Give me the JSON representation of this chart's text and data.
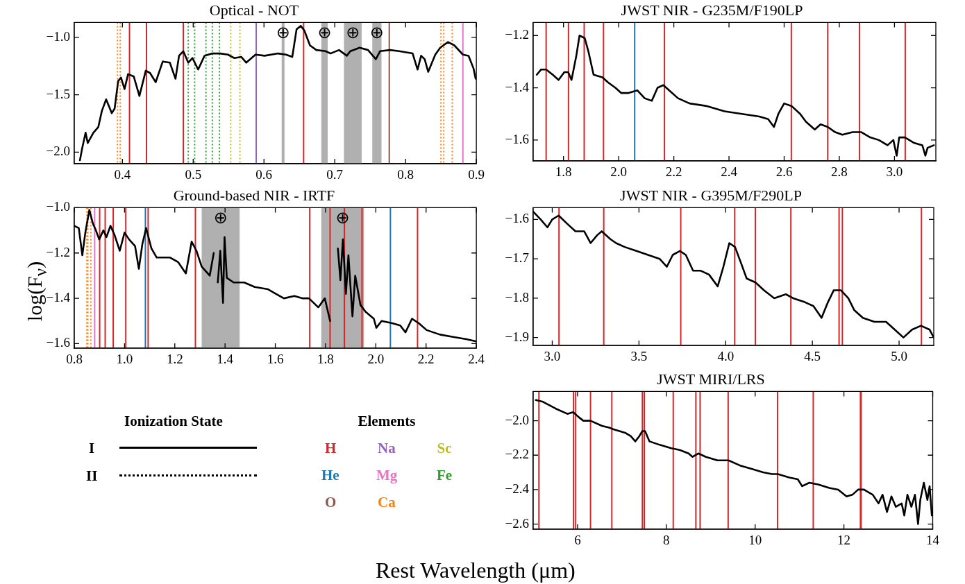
{
  "chart_data": [
    {
      "type": "line",
      "title": "Optical - NOT",
      "marker": "none",
      "legend": false,
      "xlim": [
        0.332,
        0.9
      ],
      "ylim": [
        -2.1,
        -0.87
      ],
      "xticks": [
        0.4,
        0.5,
        0.6,
        0.7,
        0.8,
        0.9
      ],
      "yticks": [
        {
          "value": -2.0,
          "label": "−2.0"
        },
        {
          "value": -1.5,
          "label": "−1.5"
        },
        {
          "value": -1.0,
          "label": "−1.0"
        }
      ],
      "series": [
        {
          "color": "#000000",
          "x": [
            0.34,
            0.343,
            0.348,
            0.351,
            0.359,
            0.366,
            0.371,
            0.377,
            0.385,
            0.389,
            0.394,
            0.398,
            0.403,
            0.408,
            0.416,
            0.424,
            0.433,
            0.439,
            0.447,
            0.457,
            0.467,
            0.475,
            0.48,
            0.486,
            0.493,
            0.499,
            0.507,
            0.516,
            0.527,
            0.538,
            0.549,
            0.558,
            0.568,
            0.575,
            0.588,
            0.601,
            0.62,
            0.631,
            0.64,
            0.646,
            0.652,
            0.657,
            0.665,
            0.674,
            0.687,
            0.694,
            0.706,
            0.717,
            0.722,
            0.735,
            0.747,
            0.758,
            0.764,
            0.778,
            0.791,
            0.81,
            0.817,
            0.822,
            0.827,
            0.832,
            0.842,
            0.849,
            0.86,
            0.869,
            0.881,
            0.889,
            0.896,
            0.899
          ],
          "values": [
            -2.07,
            -1.97,
            -1.83,
            -1.92,
            -1.83,
            -1.78,
            -1.64,
            -1.54,
            -1.66,
            -1.62,
            -1.38,
            -1.35,
            -1.45,
            -1.32,
            -1.34,
            -1.51,
            -1.29,
            -1.31,
            -1.39,
            -1.21,
            -1.22,
            -1.36,
            -1.16,
            -1.12,
            -1.22,
            -1.18,
            -1.28,
            -1.16,
            -1.14,
            -1.14,
            -1.15,
            -1.18,
            -1.17,
            -1.22,
            -1.15,
            -1.16,
            -1.14,
            -1.15,
            -1.17,
            -0.93,
            -0.9,
            -0.94,
            -1.07,
            -1.11,
            -1.12,
            -1.14,
            -1.11,
            -1.16,
            -1.12,
            -1.09,
            -1.11,
            -1.19,
            -1.12,
            -1.11,
            -1.12,
            -1.14,
            -1.28,
            -1.16,
            -1.19,
            -1.3,
            -1.15,
            -1.09,
            -1.04,
            -1.07,
            -1.15,
            -1.16,
            -1.27,
            -1.36
          ]
        }
      ],
      "bands": [
        {
          "axis": "x",
          "from": 0.625,
          "to": 0.629,
          "color": "#b0b0b0",
          "label": "⊕"
        },
        {
          "axis": "x",
          "from": 0.681,
          "to": 0.69,
          "color": "#b0b0b0",
          "label": "⊕"
        },
        {
          "axis": "x",
          "from": 0.713,
          "to": 0.738,
          "color": "#b0b0b0",
          "label": "⊕"
        },
        {
          "axis": "x",
          "from": 0.753,
          "to": 0.766,
          "color": "#b0b0b0",
          "label": "⊕"
        }
      ],
      "ref_lines": [
        {
          "axis": "x",
          "value": 0.393,
          "color": "#ff7f0e",
          "line_style": "dotted"
        },
        {
          "axis": "x",
          "value": 0.397,
          "color": "#ff7f0e",
          "line_style": "dotted"
        },
        {
          "axis": "x",
          "value": 0.41,
          "color": "#d62728"
        },
        {
          "axis": "x",
          "value": 0.434,
          "color": "#d62728"
        },
        {
          "axis": "x",
          "value": 0.486,
          "color": "#d62728"
        },
        {
          "axis": "x",
          "value": 0.493,
          "color": "#2ca02c",
          "line_style": "dotted"
        },
        {
          "axis": "x",
          "value": 0.502,
          "color": "#2ca02c",
          "line_style": "dotted"
        },
        {
          "axis": "x",
          "value": 0.518,
          "color": "#2ca02c",
          "line_style": "dotted"
        },
        {
          "axis": "x",
          "value": 0.527,
          "color": "#2ca02c",
          "line_style": "dotted"
        },
        {
          "axis": "x",
          "value": 0.537,
          "color": "#2ca02c",
          "line_style": "dotted"
        },
        {
          "axis": "x",
          "value": 0.553,
          "color": "#bcbd22",
          "line_style": "dotted"
        },
        {
          "axis": "x",
          "value": 0.566,
          "color": "#bcbd22",
          "line_style": "dotted"
        },
        {
          "axis": "x",
          "value": 0.589,
          "color": "#9467bd"
        },
        {
          "axis": "x",
          "value": 0.656,
          "color": "#d62728"
        },
        {
          "axis": "x",
          "value": 0.777,
          "color": "#8c564b"
        },
        {
          "axis": "x",
          "value": 0.85,
          "color": "#ff7f0e",
          "line_style": "dotted"
        },
        {
          "axis": "x",
          "value": 0.854,
          "color": "#ff7f0e",
          "line_style": "dotted"
        },
        {
          "axis": "x",
          "value": 0.866,
          "color": "#ff7f0e",
          "line_style": "dotted"
        },
        {
          "axis": "x",
          "value": 0.881,
          "color": "#e377c2"
        }
      ]
    },
    {
      "type": "line",
      "title": "JWST NIR - G235M/F190LP",
      "marker": "none",
      "legend": false,
      "xlim": [
        1.69,
        3.15
      ],
      "ylim": [
        -1.68,
        -1.15
      ],
      "xticks": [
        1.8,
        {
          "value": 2.0,
          "label": "2.0"
        },
        2.2,
        2.4,
        2.6,
        2.8,
        {
          "value": 3.0,
          "label": "3.0"
        }
      ],
      "yticks": [
        {
          "value": -1.6,
          "label": "−1.6"
        },
        {
          "value": -1.4,
          "label": "−1.4"
        },
        {
          "value": -1.2,
          "label": "−1.2"
        }
      ],
      "series": [
        {
          "color": "#000000",
          "x": [
            1.703,
            1.719,
            1.737,
            1.761,
            1.782,
            1.803,
            1.817,
            1.829,
            1.846,
            1.858,
            1.877,
            1.89,
            1.909,
            1.941,
            1.962,
            1.988,
            2.009,
            2.036,
            2.068,
            2.094,
            2.12,
            2.141,
            2.162,
            2.183,
            2.215,
            2.257,
            2.32,
            2.384,
            2.447,
            2.51,
            2.542,
            2.563,
            2.579,
            2.6,
            2.627,
            2.658,
            2.679,
            2.711,
            2.732,
            2.758,
            2.785,
            2.811,
            2.848,
            2.88,
            2.912,
            2.943,
            2.975,
            2.996,
            3.008,
            3.017,
            3.038,
            3.069,
            3.101,
            3.112,
            3.12,
            3.143
          ],
          "values": [
            -1.35,
            -1.33,
            -1.33,
            -1.35,
            -1.37,
            -1.34,
            -1.34,
            -1.37,
            -1.28,
            -1.2,
            -1.21,
            -1.26,
            -1.35,
            -1.36,
            -1.38,
            -1.4,
            -1.42,
            -1.42,
            -1.41,
            -1.44,
            -1.45,
            -1.4,
            -1.39,
            -1.41,
            -1.44,
            -1.46,
            -1.47,
            -1.49,
            -1.5,
            -1.51,
            -1.52,
            -1.55,
            -1.5,
            -1.46,
            -1.47,
            -1.5,
            -1.53,
            -1.56,
            -1.54,
            -1.55,
            -1.57,
            -1.58,
            -1.57,
            -1.57,
            -1.59,
            -1.6,
            -1.62,
            -1.6,
            -1.66,
            -1.59,
            -1.59,
            -1.61,
            -1.62,
            -1.66,
            -1.63,
            -1.62
          ]
        }
      ],
      "ref_lines": [
        {
          "axis": "x",
          "value": 1.737,
          "color": "#d62728"
        },
        {
          "axis": "x",
          "value": 1.818,
          "color": "#d62728"
        },
        {
          "axis": "x",
          "value": 1.875,
          "color": "#d62728"
        },
        {
          "axis": "x",
          "value": 1.945,
          "color": "#d62728"
        },
        {
          "axis": "x",
          "value": 2.058,
          "color": "#1f77b4"
        },
        {
          "axis": "x",
          "value": 2.166,
          "color": "#d62728"
        },
        {
          "axis": "x",
          "value": 2.626,
          "color": "#d62728"
        },
        {
          "axis": "x",
          "value": 2.758,
          "color": "#d62728"
        },
        {
          "axis": "x",
          "value": 2.873,
          "color": "#d62728"
        },
        {
          "axis": "x",
          "value": 3.039,
          "color": "#d62728"
        }
      ]
    },
    {
      "type": "line",
      "title": "Ground-based NIR - IRTF",
      "ylabel": "log(F$_{ν}$)",
      "marker": "none",
      "legend": false,
      "xlim": [
        0.8,
        2.4
      ],
      "ylim": [
        -1.62,
        -1.0
      ],
      "xticks": [
        0.8,
        {
          "value": 1.0,
          "label": "1.0"
        },
        1.2,
        1.4,
        1.6,
        1.8,
        {
          "value": 2.0,
          "label": "2.0"
        },
        2.2,
        2.4
      ],
      "yticks": [
        {
          "value": -1.6,
          "label": "−1.6"
        },
        {
          "value": -1.4,
          "label": "−1.4"
        },
        {
          "value": -1.2,
          "label": "−1.2"
        },
        {
          "value": -1.0,
          "label": "−1.0"
        }
      ],
      "series": [
        {
          "color": "#000000",
          "x": [
            0.8,
            0.818,
            0.832,
            0.844,
            0.86,
            0.874,
            0.886,
            0.899,
            0.916,
            0.928,
            0.944,
            0.96,
            0.981,
            1.0,
            1.018,
            1.042,
            1.057,
            1.071,
            1.086,
            1.107,
            1.128,
            1.149,
            1.181,
            1.213,
            1.244,
            1.267,
            1.286,
            1.307,
            1.339,
            1.355,
            1.358,
            1.362,
            1.371,
            1.381,
            1.392,
            1.398,
            1.407,
            1.434,
            1.476,
            1.518,
            1.571,
            1.602,
            1.634,
            1.676,
            1.707,
            1.734,
            1.771,
            1.797,
            1.818,
            1.832,
            1.837,
            1.849,
            1.859,
            1.869,
            1.881,
            1.891,
            1.907,
            1.918,
            1.939,
            1.96,
            1.992,
            2.002,
            2.023,
            2.065,
            2.097,
            2.118,
            2.144,
            2.171,
            2.202,
            2.255,
            2.307,
            2.36,
            2.4
          ],
          "values": [
            -1.08,
            -1.09,
            -1.21,
            -1.11,
            -1.01,
            -1.07,
            -1.1,
            -1.14,
            -1.1,
            -1.13,
            -1.08,
            -1.12,
            -1.19,
            -1.11,
            -1.14,
            -1.17,
            -1.27,
            -1.16,
            -1.09,
            -1.18,
            -1.22,
            -1.22,
            -1.22,
            -1.24,
            -1.29,
            -1.15,
            -1.19,
            -1.26,
            -1.3,
            -1.2,
            null,
            null,
            -1.33,
            -1.19,
            -1.42,
            -1.13,
            -1.31,
            -1.33,
            -1.33,
            -1.35,
            -1.36,
            -1.38,
            -1.4,
            -1.39,
            -1.4,
            -1.4,
            -1.44,
            -1.4,
            -1.5,
            null,
            null,
            -1.18,
            -1.32,
            -1.14,
            -1.38,
            -1.21,
            -1.48,
            -1.3,
            -1.43,
            -1.46,
            -1.49,
            -1.53,
            -1.5,
            -1.51,
            -1.52,
            -1.55,
            -1.49,
            -1.51,
            -1.54,
            -1.56,
            -1.57,
            -1.58,
            -1.59
          ]
        }
      ],
      "bands": [
        {
          "axis": "x",
          "from": 1.307,
          "to": 1.458,
          "color": "#b0b0b0",
          "label": "⊕"
        },
        {
          "axis": "x",
          "from": 1.783,
          "to": 1.953,
          "color": "#b0b0b0",
          "label": "⊕"
        }
      ],
      "ref_lines": [
        {
          "axis": "x",
          "value": 0.85,
          "color": "#ff7f0e",
          "line_style": "dotted"
        },
        {
          "axis": "x",
          "value": 0.854,
          "color": "#ff7f0e",
          "line_style": "dotted"
        },
        {
          "axis": "x",
          "value": 0.866,
          "color": "#ff7f0e",
          "line_style": "dotted"
        },
        {
          "axis": "x",
          "value": 0.881,
          "color": "#e377c2"
        },
        {
          "axis": "x",
          "value": 0.901,
          "color": "#d62728"
        },
        {
          "axis": "x",
          "value": 0.923,
          "color": "#d62728"
        },
        {
          "axis": "x",
          "value": 0.955,
          "color": "#d62728"
        },
        {
          "axis": "x",
          "value": 1.005,
          "color": "#d62728"
        },
        {
          "axis": "x",
          "value": 1.083,
          "color": "#1f77b4"
        },
        {
          "axis": "x",
          "value": 1.094,
          "color": "#d62728"
        },
        {
          "axis": "x",
          "value": 1.282,
          "color": "#d62728"
        },
        {
          "axis": "x",
          "value": 1.737,
          "color": "#d62728"
        },
        {
          "axis": "x",
          "value": 1.818,
          "color": "#d62728"
        },
        {
          "axis": "x",
          "value": 1.875,
          "color": "#d62728"
        },
        {
          "axis": "x",
          "value": 1.945,
          "color": "#d62728"
        },
        {
          "axis": "x",
          "value": 2.058,
          "color": "#1f77b4"
        },
        {
          "axis": "x",
          "value": 2.166,
          "color": "#d62728"
        }
      ]
    },
    {
      "type": "line",
      "title": "JWST NIR - G395M/F290LP",
      "marker": "none",
      "legend": false,
      "xlim": [
        2.89,
        5.2
      ],
      "ylim": [
        -1.92,
        -1.57
      ],
      "xticks": [
        {
          "value": 3.0,
          "label": "3.0"
        },
        3.5,
        {
          "value": 4.0,
          "label": "4.0"
        },
        4.5,
        {
          "value": 5.0,
          "label": "5.0"
        }
      ],
      "yticks": [
        {
          "value": -1.9,
          "label": "−1.9"
        },
        {
          "value": -1.8,
          "label": "−1.8"
        },
        {
          "value": -1.7,
          "label": "−1.7"
        },
        {
          "value": -1.6,
          "label": "−1.6"
        }
      ],
      "series": [
        {
          "color": "#000000",
          "x": [
            2.89,
            2.933,
            2.972,
            3.0,
            3.037,
            3.084,
            3.134,
            3.184,
            3.221,
            3.259,
            3.285,
            3.335,
            3.368,
            3.418,
            3.485,
            3.552,
            3.619,
            3.661,
            3.695,
            3.736,
            3.77,
            3.812,
            3.854,
            3.904,
            3.954,
            3.987,
            4.021,
            4.054,
            4.088,
            4.121,
            4.172,
            4.221,
            4.28,
            4.347,
            4.389,
            4.456,
            4.506,
            4.553,
            4.59,
            4.623,
            4.665,
            4.707,
            4.741,
            4.791,
            4.858,
            4.925,
            4.975,
            5.025,
            5.075,
            5.126,
            5.176,
            5.2
          ],
          "values": [
            -1.58,
            -1.6,
            -1.62,
            -1.6,
            -1.59,
            -1.61,
            -1.63,
            -1.63,
            -1.66,
            -1.64,
            -1.63,
            -1.65,
            -1.66,
            -1.67,
            -1.68,
            -1.69,
            -1.7,
            -1.72,
            -1.69,
            -1.68,
            -1.69,
            -1.73,
            -1.73,
            -1.74,
            -1.77,
            -1.72,
            -1.66,
            -1.67,
            -1.71,
            -1.75,
            -1.76,
            -1.78,
            -1.8,
            -1.79,
            -1.8,
            -1.81,
            -1.82,
            -1.85,
            -1.81,
            -1.78,
            -1.78,
            -1.8,
            -1.83,
            -1.85,
            -1.86,
            -1.86,
            -1.88,
            -1.9,
            -1.88,
            -1.87,
            -1.88,
            -1.9
          ]
        }
      ],
      "ref_lines": [
        {
          "axis": "x",
          "value": 3.039,
          "color": "#d62728"
        },
        {
          "axis": "x",
          "value": 3.297,
          "color": "#d62728"
        },
        {
          "axis": "x",
          "value": 3.741,
          "color": "#d62728"
        },
        {
          "axis": "x",
          "value": 4.052,
          "color": "#d62728"
        },
        {
          "axis": "x",
          "value": 4.171,
          "color": "#d62728"
        },
        {
          "axis": "x",
          "value": 4.376,
          "color": "#d62728"
        },
        {
          "axis": "x",
          "value": 4.654,
          "color": "#d62728"
        },
        {
          "axis": "x",
          "value": 4.673,
          "color": "#d62728"
        },
        {
          "axis": "x",
          "value": 5.129,
          "color": "#d62728"
        }
      ]
    },
    {
      "type": "other",
      "legend_title": "Ionization State",
      "annotations": [
        "I",
        "II"
      ],
      "title": "Elements",
      "categories": [
        "H",
        "Na",
        "Sc",
        "He",
        "Mg",
        "Fe",
        "O",
        "Ca"
      ],
      "colors": [
        "#d62728",
        "#9467bd",
        "#bcbd22",
        "#1f77b4",
        "#e377c2",
        "#2ca02c",
        "#8c564b",
        "#ff7f0e"
      ]
    },
    {
      "type": "line",
      "title": "JWST MIRI/LRS",
      "xlabel": "Rest Wavelength (μm)",
      "marker": "none",
      "legend": false,
      "xlim": [
        5.0,
        14.0
      ],
      "ylim": [
        -2.63,
        -1.83
      ],
      "xticks": [
        6,
        8,
        10,
        12,
        14
      ],
      "yticks": [
        {
          "value": -2.6,
          "label": "−2.6"
        },
        {
          "value": -2.4,
          "label": "−2.4"
        },
        {
          "value": -2.2,
          "label": "−2.2"
        },
        {
          "value": -2.0,
          "label": "−2.0"
        }
      ],
      "series": [
        {
          "color": "#000000",
          "x": [
            5.06,
            5.22,
            5.51,
            5.77,
            5.9,
            6.03,
            6.13,
            6.29,
            6.55,
            6.71,
            6.81,
            7.07,
            7.2,
            7.3,
            7.39,
            7.46,
            7.52,
            7.62,
            7.85,
            8.11,
            8.3,
            8.5,
            8.59,
            8.72,
            8.89,
            9.15,
            9.4,
            9.66,
            9.92,
            10.18,
            10.38,
            10.51,
            10.77,
            10.96,
            11.06,
            11.22,
            11.42,
            11.67,
            11.87,
            12.06,
            12.19,
            12.32,
            12.45,
            12.65,
            12.78,
            12.87,
            12.97,
            13.07,
            13.17,
            13.3,
            13.36,
            13.43,
            13.52,
            13.6,
            13.67,
            13.72,
            13.8,
            13.88,
            13.93,
            13.98
          ],
          "values": [
            -1.88,
            -1.89,
            -1.93,
            -1.96,
            -1.95,
            -1.98,
            -2.0,
            -2.0,
            -2.03,
            -2.04,
            -2.05,
            -2.07,
            -2.09,
            -2.12,
            -2.09,
            -2.06,
            -2.06,
            -2.12,
            -2.14,
            -2.16,
            -2.17,
            -2.19,
            -2.21,
            -2.19,
            -2.21,
            -2.23,
            -2.23,
            -2.26,
            -2.28,
            -2.3,
            -2.31,
            -2.31,
            -2.33,
            -2.34,
            -2.38,
            -2.36,
            -2.37,
            -2.39,
            -2.4,
            -2.44,
            -2.43,
            -2.4,
            -2.4,
            -2.43,
            -2.48,
            -2.43,
            -2.53,
            -2.44,
            -2.5,
            -2.48,
            -2.55,
            -2.43,
            -2.5,
            -2.43,
            -2.6,
            -2.46,
            -2.36,
            -2.46,
            -2.38,
            -2.55
          ]
        }
      ],
      "ref_lines": [
        {
          "axis": "x",
          "value": 5.129,
          "color": "#d62728"
        },
        {
          "axis": "x",
          "value": 5.908,
          "color": "#d62728"
        },
        {
          "axis": "x",
          "value": 5.957,
          "color": "#d62728"
        },
        {
          "axis": "x",
          "value": 6.292,
          "color": "#d62728"
        },
        {
          "axis": "x",
          "value": 6.772,
          "color": "#d62728"
        },
        {
          "axis": "x",
          "value": 7.46,
          "color": "#d62728"
        },
        {
          "axis": "x",
          "value": 7.503,
          "color": "#d62728"
        },
        {
          "axis": "x",
          "value": 8.155,
          "color": "#d62728"
        },
        {
          "axis": "x",
          "value": 8.665,
          "color": "#d62728"
        },
        {
          "axis": "x",
          "value": 8.76,
          "color": "#d62728"
        },
        {
          "axis": "x",
          "value": 9.392,
          "color": "#d62728"
        },
        {
          "axis": "x",
          "value": 10.504,
          "color": "#d62728"
        },
        {
          "axis": "x",
          "value": 11.309,
          "color": "#d62728"
        },
        {
          "axis": "x",
          "value": 12.372,
          "color": "#d62728"
        },
        {
          "axis": "x",
          "value": 12.387,
          "color": "#d62728"
        }
      ]
    }
  ]
}
